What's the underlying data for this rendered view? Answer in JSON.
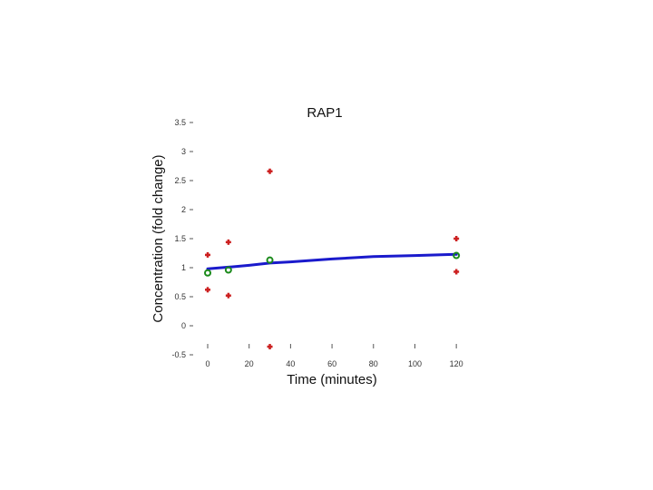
{
  "chart_data": {
    "type": "scatter",
    "title": "RAP1",
    "xlabel": "Time (minutes)",
    "ylabel": "Concentration (fold change)",
    "xlim": [
      0,
      130
    ],
    "ylim": [
      -0.5,
      3.5
    ],
    "x_ticks": [
      {
        "value": 0,
        "label": "0"
      },
      {
        "value": 20,
        "label": "20"
      },
      {
        "value": 40,
        "label": "40"
      },
      {
        "value": 60,
        "label": "60"
      },
      {
        "value": 80,
        "label": "80"
      },
      {
        "value": 100,
        "label": "100"
      },
      {
        "value": 120,
        "label": "120"
      }
    ],
    "y_ticks": [
      {
        "value": -0.5,
        "label": "-0.5"
      },
      {
        "value": 0,
        "label": "0"
      },
      {
        "value": 0.5,
        "label": "0.5"
      },
      {
        "value": 1,
        "label": "1"
      },
      {
        "value": 1.5,
        "label": "1.5"
      },
      {
        "value": 2,
        "label": "2"
      },
      {
        "value": 2.5,
        "label": "2.5"
      },
      {
        "value": 3,
        "label": "3"
      },
      {
        "value": 3.5,
        "label": "3.5"
      }
    ],
    "grid": false,
    "series": [
      {
        "marker": "plus",
        "color": "#cc2020",
        "points": [
          {
            "x": 0,
            "y": 1.22
          },
          {
            "x": 0,
            "y": 0.62
          },
          {
            "x": 10,
            "y": 1.44
          },
          {
            "x": 10,
            "y": 0.52
          },
          {
            "x": 30,
            "y": 2.66
          },
          {
            "x": 30,
            "y": -0.36
          },
          {
            "x": 120,
            "y": 1.5
          },
          {
            "x": 120,
            "y": 0.93
          }
        ]
      },
      {
        "marker": "circle-open",
        "color": "#1a8a1a",
        "points": [
          {
            "x": 0,
            "y": 0.91
          },
          {
            "x": 10,
            "y": 0.96
          },
          {
            "x": 30,
            "y": 1.13
          },
          {
            "x": 120,
            "y": 1.21
          }
        ]
      },
      {
        "marker": "line",
        "color": "#1a1acc",
        "points": [
          {
            "x": 0,
            "y": 0.98
          },
          {
            "x": 10,
            "y": 1.01
          },
          {
            "x": 20,
            "y": 1.04
          },
          {
            "x": 30,
            "y": 1.08
          },
          {
            "x": 40,
            "y": 1.1
          },
          {
            "x": 60,
            "y": 1.15
          },
          {
            "x": 80,
            "y": 1.19
          },
          {
            "x": 100,
            "y": 1.21
          },
          {
            "x": 120,
            "y": 1.23
          }
        ]
      }
    ]
  }
}
